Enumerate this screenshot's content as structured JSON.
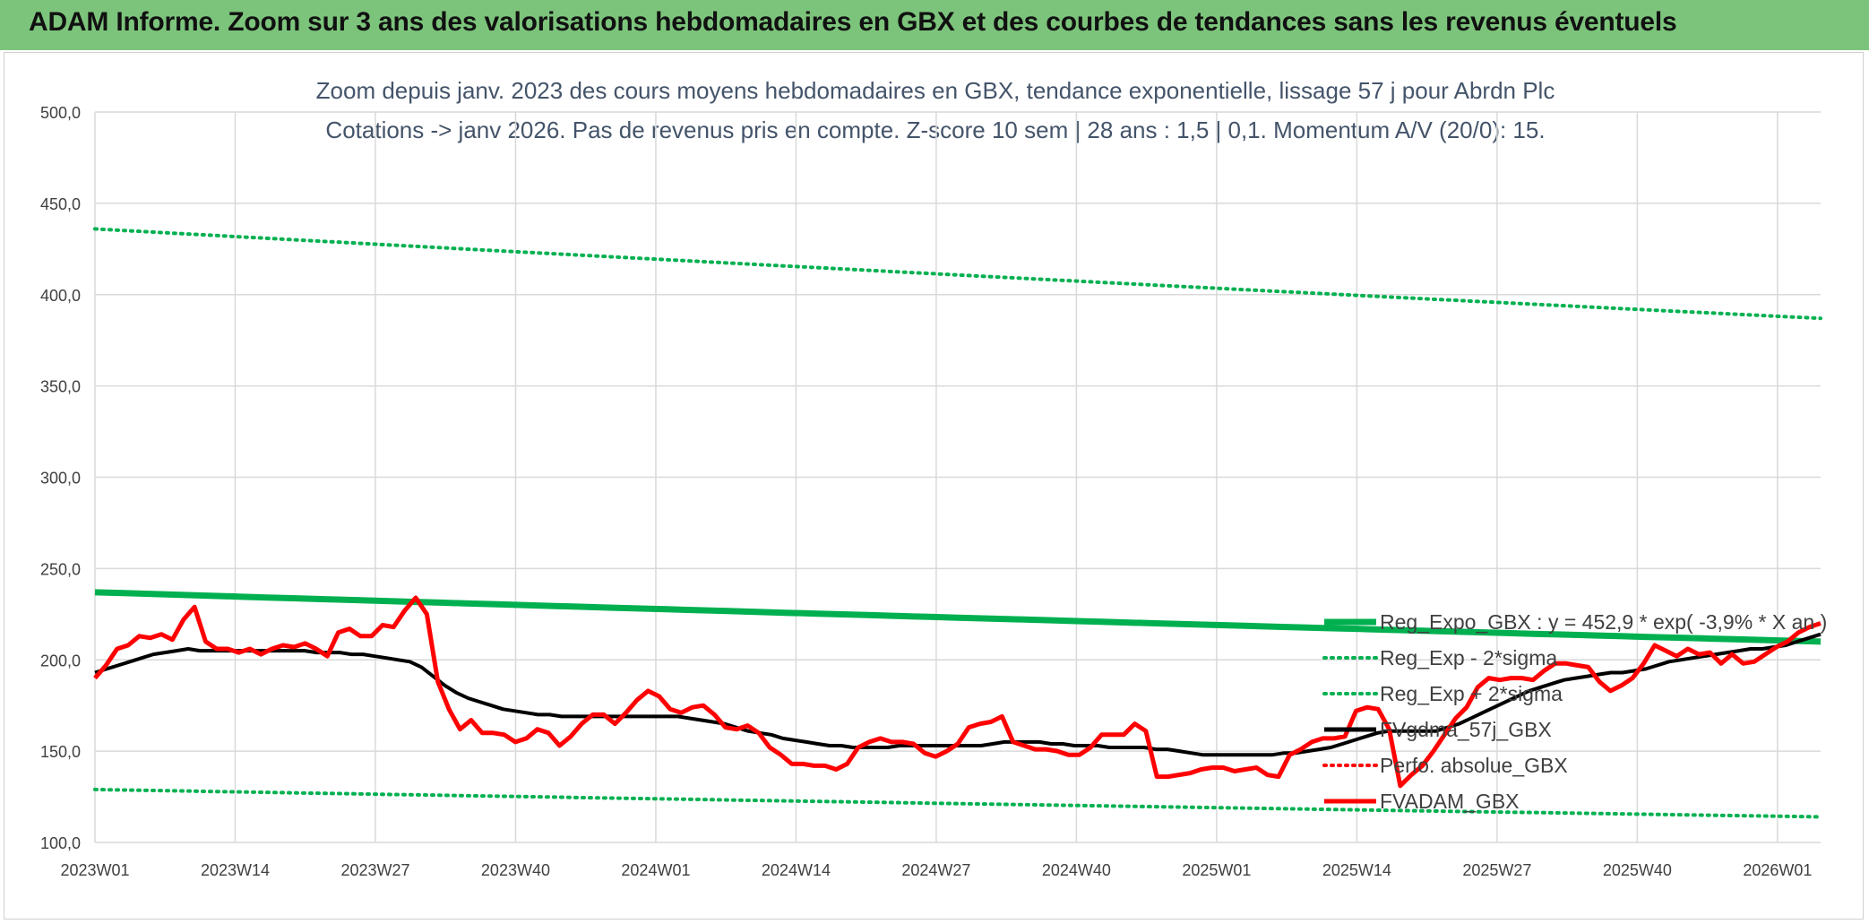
{
  "banner": {
    "title": "ADAM Informe. Zoom sur 3 ans des valorisations hebdomadaires en GBX et des courbes de tendances sans les revenus éventuels"
  },
  "chart_data": {
    "type": "line",
    "title": "Zoom depuis janv. 2023 des cours moyens hebdomadaires en GBX, tendance exponentielle, lissage 57 j pour Abrdn Plc",
    "subtitle": "Cotations -> janv 2026. Pas de revenus pris en compte. Z-score 10 sem | 28 ans : 1,5 | 0,1. Momentum A/V (20/0): 15.",
    "xlabel": "",
    "ylabel": "",
    "ylim": [
      100,
      500
    ],
    "yticks": [
      "100,0",
      "150,0",
      "200,0",
      "250,0",
      "300,0",
      "350,0",
      "400,0",
      "450,0",
      "500,0"
    ],
    "xticks": [
      "2023W01",
      "2023W14",
      "2023W27",
      "2023W40",
      "2024W01",
      "2024W14",
      "2024W27",
      "2024W40",
      "2025W01",
      "2025W14",
      "2025W27",
      "2025W40",
      "2026W01"
    ],
    "x_week_range": [
      "2023W01",
      "2026W04"
    ],
    "grid": true,
    "legend_position": "right-bottom",
    "series": [
      {
        "name": "Reg_Expo_GBX : y = 452,9 * exp( -3,9% *  X  an )",
        "color": "#00b050",
        "style": "solid",
        "endpoints": [
          237,
          210
        ]
      },
      {
        "name": "Reg_Exp - 2*sigma",
        "color": "#00b050",
        "style": "dotted",
        "endpoints": [
          129,
          114
        ]
      },
      {
        "name": "Reg_Exp + 2*sigma",
        "color": "#00b050",
        "style": "dotted",
        "endpoints": [
          436,
          387
        ]
      },
      {
        "name": "FVgdma_57j_GBX",
        "color": "#000000",
        "style": "solid",
        "values": [
          193,
          195,
          197,
          199,
          201,
          203,
          204,
          205,
          206,
          205,
          205,
          205,
          205,
          205,
          205,
          205,
          205,
          205,
          205,
          204,
          204,
          204,
          203,
          203,
          202,
          201,
          200,
          199,
          196,
          191,
          186,
          182,
          179,
          177,
          175,
          173,
          172,
          171,
          170,
          170,
          169,
          169,
          169,
          169,
          169,
          169,
          169,
          169,
          169,
          169,
          169,
          168,
          167,
          166,
          165,
          163,
          161,
          160,
          159,
          157,
          156,
          155,
          154,
          153,
          153,
          152,
          152,
          152,
          152,
          153,
          153,
          153,
          153,
          153,
          153,
          153,
          153,
          154,
          155,
          155,
          155,
          155,
          154,
          154,
          153,
          153,
          153,
          152,
          152,
          152,
          152,
          151,
          151,
          150,
          149,
          148,
          148,
          148,
          148,
          148,
          148,
          148,
          149,
          149,
          150,
          151,
          152,
          154,
          156,
          158,
          160,
          161,
          161,
          161,
          161,
          161,
          163,
          165,
          168,
          171,
          174,
          177,
          180,
          183,
          185,
          187,
          189,
          190,
          191,
          192,
          193,
          193,
          194,
          195,
          197,
          199,
          200,
          201,
          202,
          203,
          204,
          205,
          206,
          206,
          207,
          208,
          210,
          212,
          214
        ]
      },
      {
        "name": "Perfo. absolue_GBX",
        "color": "#ff0000",
        "style": "dotted",
        "values": []
      },
      {
        "name": "FVADAM_GBX",
        "color": "#ff0000",
        "style": "solid",
        "values": [
          190,
          197,
          206,
          208,
          213,
          212,
          214,
          211,
          222,
          229,
          210,
          206,
          206,
          204,
          206,
          203,
          206,
          208,
          207,
          209,
          206,
          202,
          215,
          217,
          213,
          213,
          219,
          218,
          227,
          234,
          225,
          188,
          173,
          162,
          167,
          160,
          160,
          159,
          155,
          157,
          162,
          160,
          153,
          158,
          165,
          170,
          170,
          165,
          171,
          178,
          183,
          180,
          173,
          171,
          174,
          175,
          170,
          163,
          162,
          164,
          160,
          152,
          148,
          143,
          143,
          142,
          142,
          140,
          143,
          152,
          155,
          157,
          155,
          155,
          154,
          149,
          147,
          150,
          154,
          163,
          165,
          166,
          169,
          155,
          153,
          151,
          151,
          150,
          148,
          148,
          152,
          159,
          159,
          159,
          165,
          161,
          136,
          136,
          137,
          138,
          140,
          141,
          141,
          139,
          140,
          141,
          137,
          136,
          148,
          151,
          155,
          157,
          157,
          158,
          172,
          174,
          173,
          162,
          131,
          137,
          142,
          150,
          159,
          168,
          174,
          185,
          190,
          189,
          190,
          190,
          189,
          194,
          198,
          198,
          197,
          196,
          188,
          183,
          186,
          190,
          198,
          208,
          205,
          202,
          206,
          203,
          204,
          198,
          203,
          198,
          199,
          203,
          207,
          210,
          215,
          218,
          220
        ]
      }
    ]
  },
  "legend": {
    "items": [
      "Reg_Expo_GBX : y = 452,9 * exp( -3,9% *  X  an )",
      "Reg_Exp - 2*sigma",
      "Reg_Exp + 2*sigma",
      "FVgdma_57j_GBX",
      "Perfo. absolue_GBX",
      "FVADAM_GBX"
    ]
  }
}
